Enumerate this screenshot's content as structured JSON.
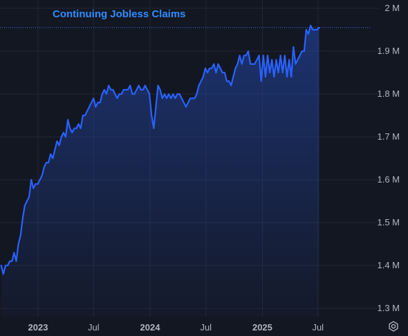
{
  "chart_data": {
    "type": "area",
    "title": "Continuing Jobless Claims",
    "ylabel": "",
    "xlabel": "",
    "ylim": [
      1.3,
      2.0
    ],
    "y_ticks": [
      {
        "value": 2.0,
        "label": "2 M"
      },
      {
        "value": 1.9,
        "label": "1.9 M"
      },
      {
        "value": 1.8,
        "label": "1.8 M"
      },
      {
        "value": 1.7,
        "label": "1.7 M"
      },
      {
        "value": 1.6,
        "label": "1.6 M"
      },
      {
        "value": 1.5,
        "label": "1.5 M"
      },
      {
        "value": 1.4,
        "label": "1.4 M"
      },
      {
        "value": 1.3,
        "label": "1.3 M"
      }
    ],
    "x_range": [
      "2022-09-03",
      "2025-12-27"
    ],
    "x_ticks": [
      {
        "date": "2023-01-01",
        "label": "2023",
        "bold": true
      },
      {
        "date": "2023-07-01",
        "label": "Jul",
        "bold": false
      },
      {
        "date": "2024-01-01",
        "label": "2024",
        "bold": true
      },
      {
        "date": "2024-07-01",
        "label": "Jul",
        "bold": false
      },
      {
        "date": "2025-01-01",
        "label": "2025",
        "bold": true
      },
      {
        "date": "2025-07-01",
        "label": "Jul",
        "bold": false
      }
    ],
    "grid": true,
    "reference_line": 1.955,
    "series": [
      {
        "name": "Continuing Jobless Claims",
        "points": [
          [
            "2022-09-03",
            1.4
          ],
          [
            "2022-09-10",
            1.38
          ],
          [
            "2022-09-17",
            1.4
          ],
          [
            "2022-09-24",
            1.4
          ],
          [
            "2022-10-01",
            1.41
          ],
          [
            "2022-10-08",
            1.41
          ],
          [
            "2022-10-15",
            1.43
          ],
          [
            "2022-10-22",
            1.41
          ],
          [
            "2022-10-29",
            1.45
          ],
          [
            "2022-11-05",
            1.47
          ],
          [
            "2022-11-12",
            1.51
          ],
          [
            "2022-11-19",
            1.54
          ],
          [
            "2022-11-26",
            1.55
          ],
          [
            "2022-12-03",
            1.56
          ],
          [
            "2022-12-10",
            1.6
          ],
          [
            "2022-12-17",
            1.58
          ],
          [
            "2022-12-24",
            1.59
          ],
          [
            "2022-12-31",
            1.59
          ],
          [
            "2023-01-07",
            1.6
          ],
          [
            "2023-01-14",
            1.61
          ],
          [
            "2023-01-21",
            1.63
          ],
          [
            "2023-01-28",
            1.64
          ],
          [
            "2023-02-04",
            1.64
          ],
          [
            "2023-02-11",
            1.66
          ],
          [
            "2023-02-18",
            1.65
          ],
          [
            "2023-02-25",
            1.67
          ],
          [
            "2023-03-04",
            1.69
          ],
          [
            "2023-03-11",
            1.68
          ],
          [
            "2023-03-18",
            1.7
          ],
          [
            "2023-03-25",
            1.71
          ],
          [
            "2023-04-01",
            1.7
          ],
          [
            "2023-04-08",
            1.74
          ],
          [
            "2023-04-15",
            1.72
          ],
          [
            "2023-04-22",
            1.71
          ],
          [
            "2023-04-29",
            1.72
          ],
          [
            "2023-05-06",
            1.72
          ],
          [
            "2023-05-13",
            1.73
          ],
          [
            "2023-05-20",
            1.72
          ],
          [
            "2023-05-27",
            1.75
          ],
          [
            "2023-06-03",
            1.75
          ],
          [
            "2023-06-10",
            1.76
          ],
          [
            "2023-06-17",
            1.77
          ],
          [
            "2023-06-24",
            1.78
          ],
          [
            "2023-07-01",
            1.79
          ],
          [
            "2023-07-08",
            1.77
          ],
          [
            "2023-07-15",
            1.78
          ],
          [
            "2023-07-22",
            1.78
          ],
          [
            "2023-07-29",
            1.8
          ],
          [
            "2023-08-05",
            1.81
          ],
          [
            "2023-08-12",
            1.8
          ],
          [
            "2023-08-19",
            1.82
          ],
          [
            "2023-08-26",
            1.81
          ],
          [
            "2023-09-02",
            1.81
          ],
          [
            "2023-09-09",
            1.8
          ],
          [
            "2023-09-16",
            1.79
          ],
          [
            "2023-09-23",
            1.8
          ],
          [
            "2023-09-30",
            1.8
          ],
          [
            "2023-10-07",
            1.81
          ],
          [
            "2023-10-14",
            1.81
          ],
          [
            "2023-10-21",
            1.81
          ],
          [
            "2023-10-28",
            1.82
          ],
          [
            "2023-11-04",
            1.8
          ],
          [
            "2023-11-11",
            1.8
          ],
          [
            "2023-11-18",
            1.81
          ],
          [
            "2023-11-25",
            1.82
          ],
          [
            "2023-12-02",
            1.81
          ],
          [
            "2023-12-09",
            1.81
          ],
          [
            "2023-12-16",
            1.82
          ],
          [
            "2023-12-23",
            1.81
          ],
          [
            "2023-12-30",
            1.8
          ],
          [
            "2024-01-06",
            1.75
          ],
          [
            "2024-01-13",
            1.72
          ],
          [
            "2024-01-20",
            1.77
          ],
          [
            "2024-01-27",
            1.82
          ],
          [
            "2024-02-03",
            1.81
          ],
          [
            "2024-02-10",
            1.79
          ],
          [
            "2024-02-17",
            1.8
          ],
          [
            "2024-02-24",
            1.79
          ],
          [
            "2024-03-02",
            1.8
          ],
          [
            "2024-03-09",
            1.79
          ],
          [
            "2024-03-16",
            1.8
          ],
          [
            "2024-03-23",
            1.79
          ],
          [
            "2024-03-30",
            1.8
          ],
          [
            "2024-04-06",
            1.8
          ],
          [
            "2024-04-13",
            1.79
          ],
          [
            "2024-04-20",
            1.78
          ],
          [
            "2024-04-27",
            1.77
          ],
          [
            "2024-05-04",
            1.78
          ],
          [
            "2024-05-11",
            1.79
          ],
          [
            "2024-05-18",
            1.79
          ],
          [
            "2024-05-25",
            1.79
          ],
          [
            "2024-06-01",
            1.8
          ],
          [
            "2024-06-08",
            1.82
          ],
          [
            "2024-06-15",
            1.83
          ],
          [
            "2024-06-22",
            1.84
          ],
          [
            "2024-06-29",
            1.86
          ],
          [
            "2024-07-06",
            1.85
          ],
          [
            "2024-07-13",
            1.86
          ],
          [
            "2024-07-20",
            1.86
          ],
          [
            "2024-07-27",
            1.87
          ],
          [
            "2024-08-03",
            1.85
          ],
          [
            "2024-08-10",
            1.87
          ],
          [
            "2024-08-17",
            1.86
          ],
          [
            "2024-08-24",
            1.85
          ],
          [
            "2024-08-31",
            1.85
          ],
          [
            "2024-09-07",
            1.83
          ],
          [
            "2024-09-14",
            1.83
          ],
          [
            "2024-09-21",
            1.82
          ],
          [
            "2024-09-28",
            1.84
          ],
          [
            "2024-10-05",
            1.86
          ],
          [
            "2024-10-12",
            1.87
          ],
          [
            "2024-10-19",
            1.89
          ],
          [
            "2024-10-26",
            1.87
          ],
          [
            "2024-11-02",
            1.89
          ],
          [
            "2024-11-09",
            1.89
          ],
          [
            "2024-11-16",
            1.9
          ],
          [
            "2024-11-23",
            1.87
          ],
          [
            "2024-11-30",
            1.87
          ],
          [
            "2024-12-07",
            1.87
          ],
          [
            "2024-12-14",
            1.88
          ],
          [
            "2024-12-21",
            1.89
          ],
          [
            "2024-12-28",
            1.83
          ],
          [
            "2025-01-04",
            1.89
          ],
          [
            "2025-01-11",
            1.84
          ],
          [
            "2025-01-18",
            1.89
          ],
          [
            "2025-01-25",
            1.85
          ],
          [
            "2025-02-01",
            1.88
          ],
          [
            "2025-02-08",
            1.84
          ],
          [
            "2025-02-15",
            1.88
          ],
          [
            "2025-02-22",
            1.85
          ],
          [
            "2025-03-01",
            1.89
          ],
          [
            "2025-03-08",
            1.85
          ],
          [
            "2025-03-15",
            1.89
          ],
          [
            "2025-03-22",
            1.84
          ],
          [
            "2025-03-29",
            1.88
          ],
          [
            "2025-04-05",
            1.84
          ],
          [
            "2025-04-12",
            1.91
          ],
          [
            "2025-04-19",
            1.87
          ],
          [
            "2025-04-26",
            1.88
          ],
          [
            "2025-05-03",
            1.89
          ],
          [
            "2025-05-10",
            1.9
          ],
          [
            "2025-05-17",
            1.9
          ],
          [
            "2025-05-24",
            1.95
          ],
          [
            "2025-05-31",
            1.94
          ],
          [
            "2025-06-07",
            1.96
          ],
          [
            "2025-06-14",
            1.95
          ],
          [
            "2025-06-21",
            1.95
          ],
          [
            "2025-06-28",
            1.95
          ],
          [
            "2025-07-05",
            1.955
          ]
        ]
      }
    ],
    "colors": {
      "line": "#2962ff",
      "fill_top": "#2449b0",
      "title": "#2f8cff",
      "axis_text": "#b2b5be",
      "grid": "#232734",
      "background": "#131722",
      "reference_line": "#3d73ff"
    }
  },
  "ui": {
    "settings_icon": "gear-icon"
  }
}
